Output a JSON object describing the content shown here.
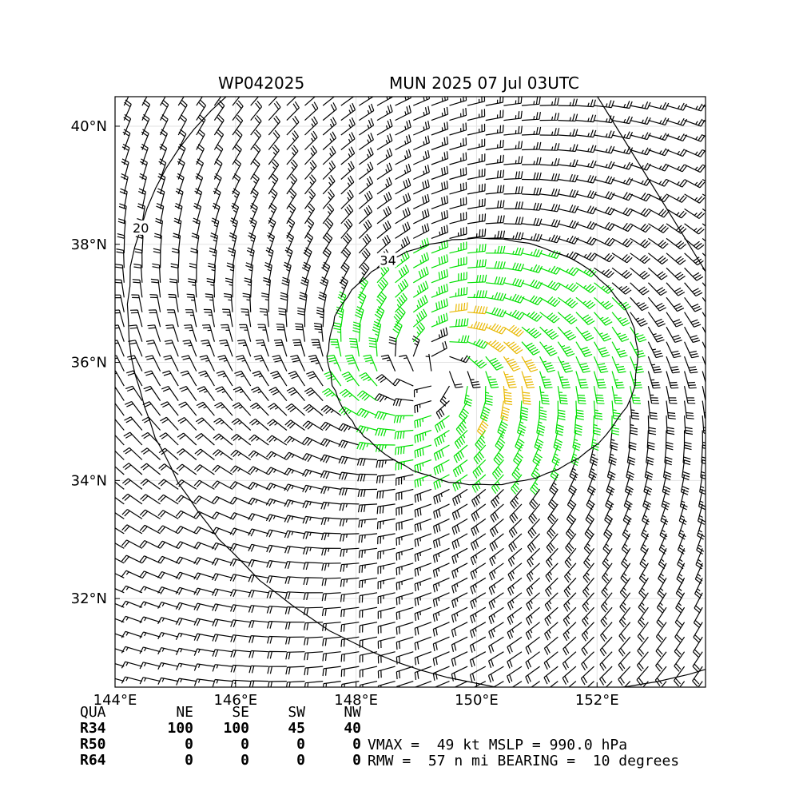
{
  "header": {
    "storm_id": "WP042025",
    "storm_time": "MUN 2025 07 Jul 03UTC"
  },
  "chart_data": {
    "type": "wind_barbs_with_contours",
    "storm_center": {
      "lon": 149.3,
      "lat": 35.8
    },
    "xlim": [
      144.0,
      153.8
    ],
    "ylim": [
      30.5,
      40.5
    ],
    "x_ticks": [
      {
        "value": 144,
        "label": "144°E"
      },
      {
        "value": 146,
        "label": "146°E"
      },
      {
        "value": 148,
        "label": "148°E"
      },
      {
        "value": 150,
        "label": "150°E"
      },
      {
        "value": 152,
        "label": "152°E"
      }
    ],
    "y_ticks": [
      {
        "value": 32,
        "label": "32°N"
      },
      {
        "value": 34,
        "label": "34°N"
      },
      {
        "value": 36,
        "label": "36°N"
      },
      {
        "value": 38,
        "label": "38°N"
      },
      {
        "value": 40,
        "label": "40°N"
      }
    ],
    "grid": true,
    "contours": [
      {
        "level": 20,
        "label": "20",
        "color": "#000000"
      },
      {
        "level": 34,
        "label": "34",
        "color": "#000000"
      }
    ],
    "barb_colors": {
      "below_34kt": "#000000",
      "from_34kt": "#00e000",
      "from_50kt": "#e8b800"
    },
    "barb_spacing_deg": {
      "lon": 0.3,
      "lat": 0.25
    },
    "max_wind_kt": 49,
    "rmw_nmi": 57
  },
  "table": {
    "header": [
      "QUA",
      "NE",
      "SE",
      "SW",
      "NW"
    ],
    "rows": [
      {
        "label": "R34",
        "values": [
          "100",
          "100",
          "45",
          "40"
        ]
      },
      {
        "label": "R50",
        "values": [
          "0",
          "0",
          "0",
          "0"
        ]
      },
      {
        "label": "R64",
        "values": [
          "0",
          "0",
          "0",
          "0"
        ]
      }
    ]
  },
  "info": {
    "line1": "VMAX =  49 kt MSLP = 990.0 hPa",
    "line2": "RMW =  57 n mi BEARING =  10 degrees"
  }
}
